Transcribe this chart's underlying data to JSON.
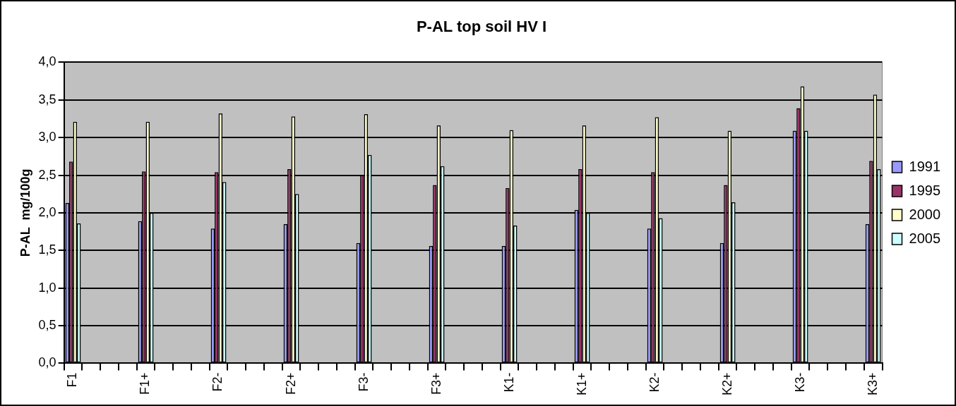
{
  "chart_data": {
    "type": "bar",
    "title": "P-AL top soil HV I",
    "ylabel": "P-AL  mg/100g",
    "categories": [
      "F1",
      null,
      null,
      null,
      "F1+",
      null,
      null,
      null,
      "F2-",
      null,
      null,
      null,
      "F2+",
      null,
      null,
      null,
      "F3-",
      null,
      null,
      null,
      "F3+",
      null,
      null,
      null,
      "K1-",
      null,
      null,
      null,
      "K1+",
      null,
      null,
      null,
      "K2-",
      null,
      null,
      null,
      "K2+",
      null,
      null,
      null,
      "K3-",
      null,
      null,
      null,
      "K3+"
    ],
    "series": [
      {
        "name": "1991",
        "color": "#9999ff",
        "values": [
          2.13,
          null,
          null,
          null,
          1.89,
          null,
          null,
          null,
          1.79,
          null,
          null,
          null,
          1.85,
          null,
          null,
          null,
          1.6,
          null,
          null,
          null,
          1.56,
          null,
          null,
          null,
          1.56,
          null,
          null,
          null,
          2.04,
          null,
          null,
          null,
          1.79,
          null,
          null,
          null,
          1.6,
          null,
          null,
          null,
          3.09,
          null,
          null,
          null,
          1.85
        ]
      },
      {
        "name": "1995",
        "color": "#993366",
        "values": [
          2.68,
          null,
          null,
          null,
          2.55,
          null,
          null,
          null,
          2.54,
          null,
          null,
          null,
          2.58,
          null,
          null,
          null,
          2.5,
          null,
          null,
          null,
          2.37,
          null,
          null,
          null,
          2.33,
          null,
          null,
          null,
          2.58,
          null,
          null,
          null,
          2.54,
          null,
          null,
          null,
          2.37,
          null,
          null,
          null,
          3.39,
          null,
          null,
          null,
          2.69
        ]
      },
      {
        "name": "2000",
        "color": "#ffffcc",
        "values": [
          3.21,
          null,
          null,
          null,
          3.21,
          null,
          null,
          null,
          3.32,
          null,
          null,
          null,
          3.28,
          null,
          null,
          null,
          3.31,
          null,
          null,
          null,
          3.16,
          null,
          null,
          null,
          3.1,
          null,
          null,
          null,
          3.16,
          null,
          null,
          null,
          3.27,
          null,
          null,
          null,
          3.09,
          null,
          null,
          null,
          3.68,
          null,
          null,
          null,
          3.57
        ]
      },
      {
        "name": "2005",
        "color": "#ccffff",
        "values": [
          1.86,
          null,
          null,
          null,
          2.0,
          null,
          null,
          null,
          2.41,
          null,
          null,
          null,
          2.25,
          null,
          null,
          null,
          2.77,
          null,
          null,
          null,
          2.62,
          null,
          null,
          null,
          1.83,
          null,
          null,
          null,
          2.0,
          null,
          null,
          null,
          1.93,
          null,
          null,
          null,
          2.14,
          null,
          null,
          null,
          3.09,
          null,
          null,
          null,
          2.58
        ]
      }
    ],
    "ylim": [
      0,
      4
    ],
    "yticks": [
      {
        "value": 0,
        "label": "0,0"
      },
      {
        "value": 0.5,
        "label": "0,5"
      },
      {
        "value": 1,
        "label": "1,0"
      },
      {
        "value": 1.5,
        "label": "1,5"
      },
      {
        "value": 2,
        "label": "2,0"
      },
      {
        "value": 2.5,
        "label": "2,5"
      },
      {
        "value": 3,
        "label": "3,0"
      },
      {
        "value": 3.5,
        "label": "3,5"
      },
      {
        "value": 4,
        "label": "4,0"
      }
    ],
    "grid": "y",
    "legend": "right"
  }
}
